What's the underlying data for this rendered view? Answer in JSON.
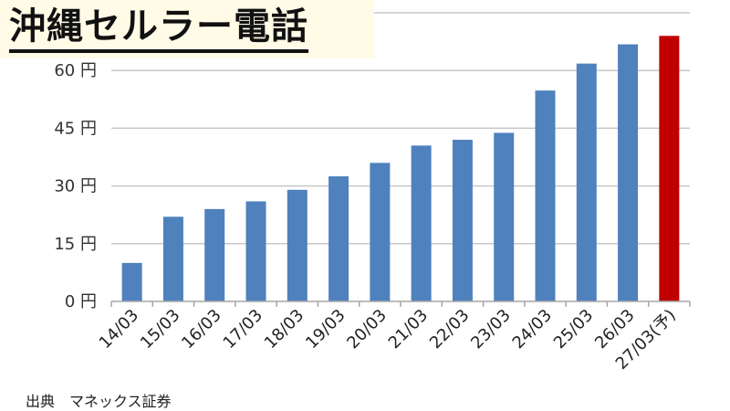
{
  "title": "沖縄セルラー電話",
  "source": "出典　マネックス証券",
  "colors": {
    "bar": "#4f81bd",
    "highlight": "#c00000",
    "grid": "#c8c8c8",
    "axis": "#a6a6a6"
  },
  "chart_data": {
    "type": "bar",
    "categories": [
      "14/03",
      "15/03",
      "16/03",
      "17/03",
      "18/03",
      "19/03",
      "20/03",
      "21/03",
      "22/03",
      "23/03",
      "24/03",
      "25/03",
      "26/03",
      "27/03(予)"
    ],
    "values": [
      10,
      22,
      24,
      26,
      29,
      32.5,
      36,
      40.5,
      42,
      43.8,
      54.8,
      61.8,
      66.8,
      69
    ],
    "highlight_index": 13,
    "ylim": [
      0,
      75
    ],
    "yticks": [
      0,
      15,
      30,
      45,
      60
    ],
    "ytick_labels": [
      "0 円",
      "15 円",
      "30 円",
      "45 円",
      "60 円"
    ],
    "grid": true
  }
}
